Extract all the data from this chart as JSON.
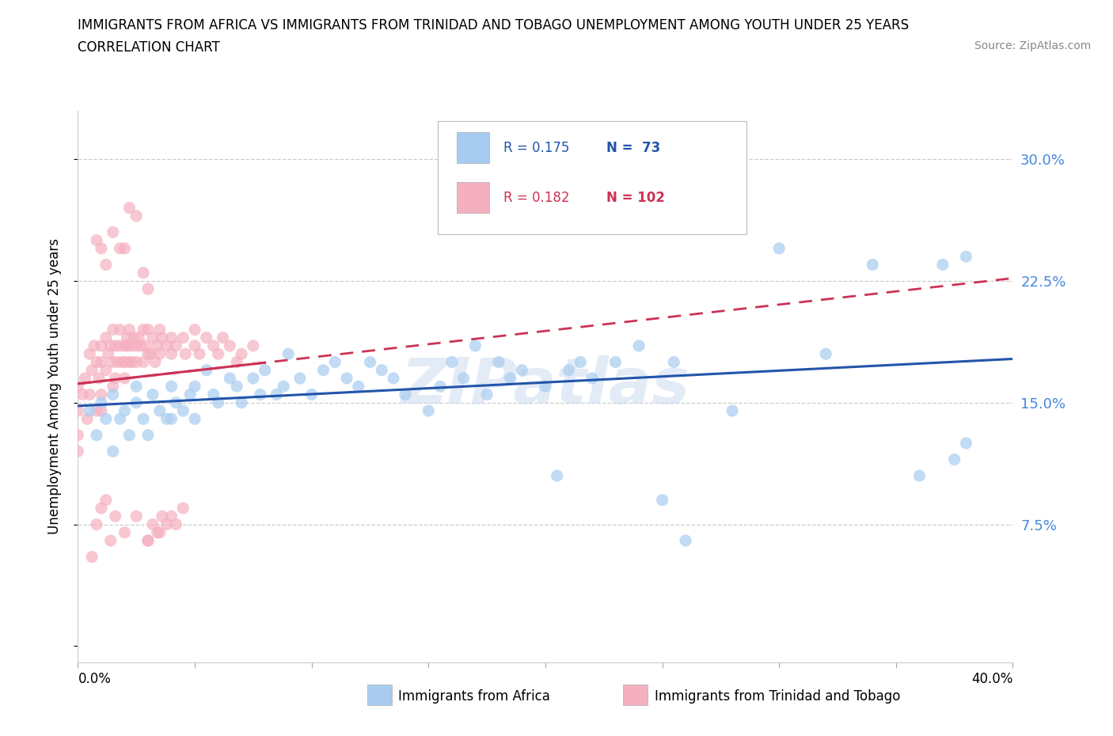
{
  "title_line1": "IMMIGRANTS FROM AFRICA VS IMMIGRANTS FROM TRINIDAD AND TOBAGO UNEMPLOYMENT AMONG YOUTH UNDER 25 YEARS",
  "title_line2": "CORRELATION CHART",
  "source_text": "Source: ZipAtlas.com",
  "ylabel": "Unemployment Among Youth under 25 years",
  "ytick_values": [
    0.0,
    0.075,
    0.15,
    0.225,
    0.3
  ],
  "xlim": [
    0.0,
    0.4
  ],
  "ylim": [
    -0.01,
    0.33
  ],
  "watermark": "ZIPatlas",
  "africa_color": "#a8ccf0",
  "tt_color": "#f5b0c0",
  "trendline_africa_color": "#2255aa",
  "trendline_tt_color": "#cc3355",
  "africa_x": [
    0.005,
    0.008,
    0.01,
    0.012,
    0.015,
    0.015,
    0.018,
    0.02,
    0.022,
    0.025,
    0.025,
    0.028,
    0.03,
    0.032,
    0.035,
    0.038,
    0.04,
    0.04,
    0.042,
    0.045,
    0.048,
    0.05,
    0.05,
    0.055,
    0.058,
    0.06,
    0.065,
    0.068,
    0.07,
    0.075,
    0.078,
    0.08,
    0.085,
    0.088,
    0.09,
    0.095,
    0.1,
    0.105,
    0.11,
    0.115,
    0.12,
    0.125,
    0.13,
    0.135,
    0.14,
    0.15,
    0.155,
    0.16,
    0.165,
    0.17,
    0.175,
    0.18,
    0.185,
    0.19,
    0.2,
    0.205,
    0.21,
    0.215,
    0.22,
    0.23,
    0.24,
    0.25,
    0.255,
    0.26,
    0.28,
    0.3,
    0.32,
    0.34,
    0.36,
    0.37,
    0.375,
    0.38,
    0.38
  ],
  "africa_y": [
    0.145,
    0.13,
    0.15,
    0.14,
    0.155,
    0.12,
    0.14,
    0.145,
    0.13,
    0.15,
    0.16,
    0.14,
    0.13,
    0.155,
    0.145,
    0.14,
    0.16,
    0.14,
    0.15,
    0.145,
    0.155,
    0.16,
    0.14,
    0.17,
    0.155,
    0.15,
    0.165,
    0.16,
    0.15,
    0.165,
    0.155,
    0.17,
    0.155,
    0.16,
    0.18,
    0.165,
    0.155,
    0.17,
    0.175,
    0.165,
    0.16,
    0.175,
    0.17,
    0.165,
    0.155,
    0.145,
    0.16,
    0.175,
    0.165,
    0.185,
    0.155,
    0.175,
    0.165,
    0.17,
    0.16,
    0.105,
    0.17,
    0.175,
    0.165,
    0.175,
    0.185,
    0.09,
    0.175,
    0.065,
    0.145,
    0.245,
    0.18,
    0.235,
    0.105,
    0.235,
    0.115,
    0.24,
    0.125
  ],
  "tt_x": [
    0.0,
    0.0,
    0.0,
    0.0,
    0.002,
    0.003,
    0.004,
    0.005,
    0.005,
    0.006,
    0.007,
    0.008,
    0.008,
    0.009,
    0.01,
    0.01,
    0.01,
    0.01,
    0.012,
    0.012,
    0.013,
    0.014,
    0.015,
    0.015,
    0.015,
    0.016,
    0.016,
    0.017,
    0.018,
    0.018,
    0.019,
    0.02,
    0.02,
    0.02,
    0.021,
    0.021,
    0.022,
    0.022,
    0.023,
    0.023,
    0.024,
    0.025,
    0.025,
    0.026,
    0.027,
    0.028,
    0.028,
    0.029,
    0.03,
    0.03,
    0.031,
    0.032,
    0.033,
    0.034,
    0.035,
    0.035,
    0.036,
    0.038,
    0.04,
    0.04,
    0.042,
    0.045,
    0.046,
    0.05,
    0.05,
    0.052,
    0.055,
    0.058,
    0.06,
    0.062,
    0.065,
    0.068,
    0.07,
    0.075,
    0.008,
    0.01,
    0.012,
    0.015,
    0.018,
    0.02,
    0.022,
    0.025,
    0.028,
    0.03,
    0.03,
    0.032,
    0.034,
    0.036,
    0.038,
    0.04,
    0.042,
    0.045,
    0.006,
    0.008,
    0.01,
    0.012,
    0.014,
    0.016,
    0.02,
    0.025,
    0.03,
    0.035
  ],
  "tt_y": [
    0.145,
    0.16,
    0.13,
    0.12,
    0.155,
    0.165,
    0.14,
    0.18,
    0.155,
    0.17,
    0.185,
    0.175,
    0.145,
    0.165,
    0.175,
    0.185,
    0.155,
    0.145,
    0.17,
    0.19,
    0.18,
    0.185,
    0.195,
    0.16,
    0.175,
    0.185,
    0.165,
    0.175,
    0.195,
    0.185,
    0.175,
    0.165,
    0.185,
    0.175,
    0.19,
    0.185,
    0.175,
    0.195,
    0.185,
    0.175,
    0.19,
    0.185,
    0.175,
    0.19,
    0.185,
    0.195,
    0.175,
    0.185,
    0.18,
    0.195,
    0.18,
    0.19,
    0.175,
    0.185,
    0.195,
    0.18,
    0.19,
    0.185,
    0.19,
    0.18,
    0.185,
    0.19,
    0.18,
    0.185,
    0.195,
    0.18,
    0.19,
    0.185,
    0.18,
    0.19,
    0.185,
    0.175,
    0.18,
    0.185,
    0.25,
    0.245,
    0.235,
    0.255,
    0.245,
    0.245,
    0.27,
    0.265,
    0.23,
    0.22,
    0.065,
    0.075,
    0.07,
    0.08,
    0.075,
    0.08,
    0.075,
    0.085,
    0.055,
    0.075,
    0.085,
    0.09,
    0.065,
    0.08,
    0.07,
    0.08,
    0.065,
    0.07
  ]
}
